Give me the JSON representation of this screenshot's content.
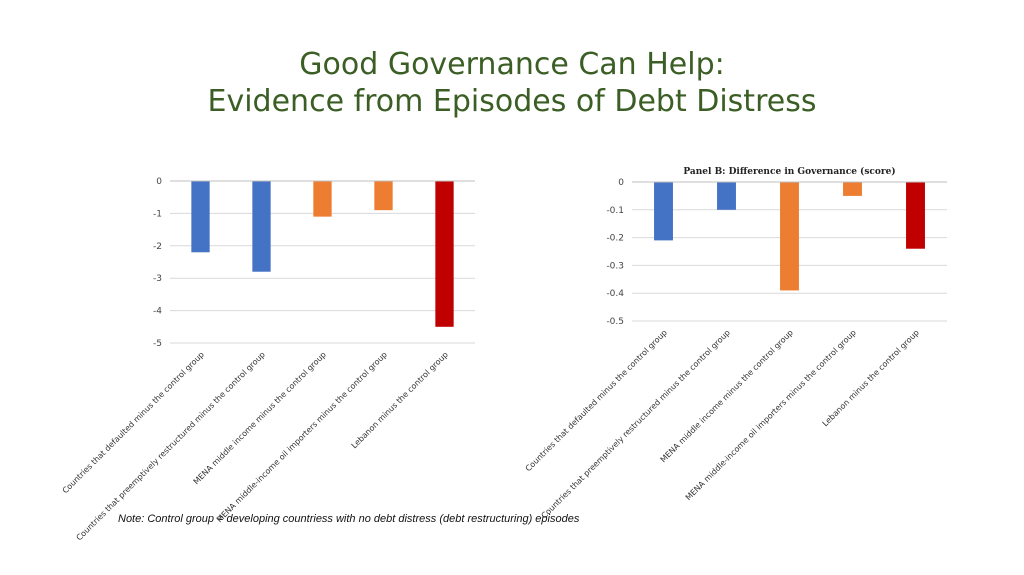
{
  "slide": {
    "title_line1": "Good Governance Can Help:",
    "title_line2": "Evidence from Episodes of Debt Distress",
    "note": "Note: Control group = developing countriess with no debt distress (debt restructuring) episodes"
  },
  "chart_data": [
    {
      "type": "bar",
      "title": "",
      "categories": [
        "Countries that defaulted minus the control group",
        "Countries that preemptively restructured minus the control group",
        "MENA middle income minus the control group",
        "MENA middle-income oil importers minus the control group",
        "Lebanon minus the control group"
      ],
      "values": [
        -2.2,
        -2.8,
        -1.1,
        -0.9,
        -4.5
      ],
      "colors": [
        "#4472c4",
        "#4472c4",
        "#ed7d31",
        "#ed7d31",
        "#c00000"
      ],
      "ylim": [
        -5,
        0
      ],
      "yticks": [
        0,
        -1,
        -2,
        -3,
        -4,
        -5
      ],
      "ytick_labels": [
        "0",
        "-1",
        "-2",
        "-3",
        "-4",
        "-5"
      ],
      "grid": true
    },
    {
      "type": "bar",
      "title": "Panel B: Difference in Governance (score)",
      "categories": [
        "Countries that defaulted minus the control group",
        "Countries that preemptively restructured minus the control group",
        "MENA middle income minus the control group",
        "MENA middle-income oil importers minus the control group",
        "Lebanon minus the control group"
      ],
      "values": [
        -0.21,
        -0.1,
        -0.39,
        -0.05,
        -0.24
      ],
      "colors": [
        "#4472c4",
        "#4472c4",
        "#ed7d31",
        "#ed7d31",
        "#c00000"
      ],
      "ylim": [
        -0.5,
        0
      ],
      "yticks": [
        0,
        -0.1,
        -0.2,
        -0.3,
        -0.4,
        -0.5
      ],
      "ytick_labels": [
        "0",
        "-0.1",
        "-0.2",
        "-0.3",
        "-0.4",
        "-0.5"
      ],
      "grid": true
    }
  ]
}
